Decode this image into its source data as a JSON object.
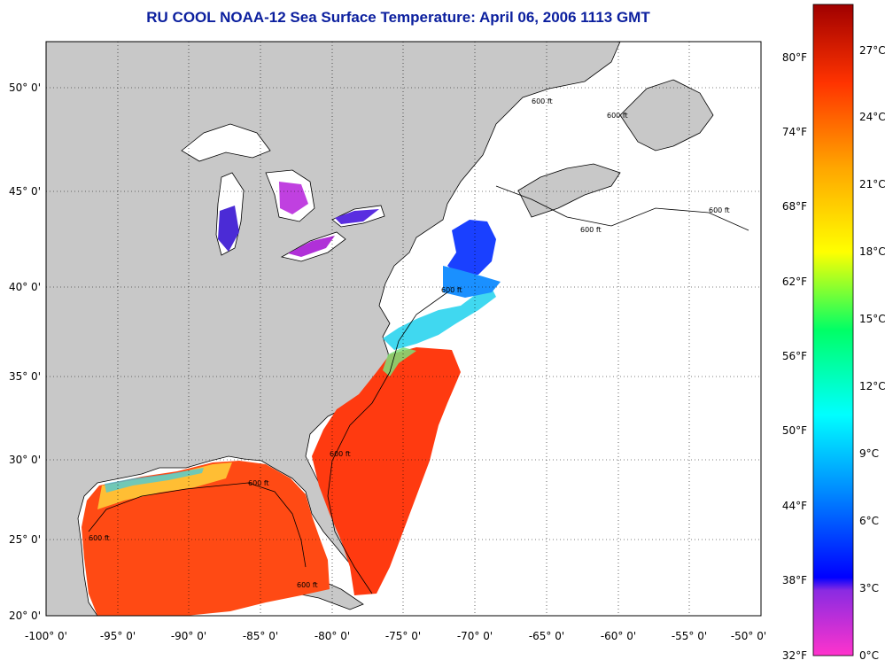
{
  "title": "RU COOL  NOAA-12  Sea Surface Temperature:  April 06, 2006 1113 GMT",
  "map": {
    "lon_range": [
      -100,
      -50
    ],
    "lat_range": [
      20,
      52.5
    ],
    "lat_ticks": [
      "50° 0'",
      "45° 0'",
      "40° 0'",
      "35° 0'",
      "30° 0'",
      "25° 0'",
      "20° 0'"
    ],
    "lon_ticks": [
      "-100° 0'",
      "-95° 0'",
      "-90° 0'",
      "-85° 0'",
      "-80° 0'",
      "-75° 0'",
      "-70° 0'",
      "-65° 0'",
      "-60° 0'",
      "-55° 0'",
      "-50° 0'"
    ],
    "contour_label": "600 ft",
    "land_color": "#c8c8c8",
    "grid": "dotted"
  },
  "colorbar": {
    "fahrenheit": [
      "80°F",
      "74°F",
      "68°F",
      "62°F",
      "56°F",
      "50°F",
      "44°F",
      "38°F",
      "32°F"
    ],
    "celsius": [
      "27°C",
      "24°C",
      "21°C",
      "18°C",
      "15°C",
      "12°C",
      "9°C",
      "6°C",
      "3°C",
      "0°C"
    ],
    "colors": [
      "#ff33cc",
      "#8a2be2",
      "#0000ff",
      "#0088ff",
      "#00ffff",
      "#00ff66",
      "#ffff00",
      "#ffa500",
      "#ff3300",
      "#a00000"
    ]
  }
}
